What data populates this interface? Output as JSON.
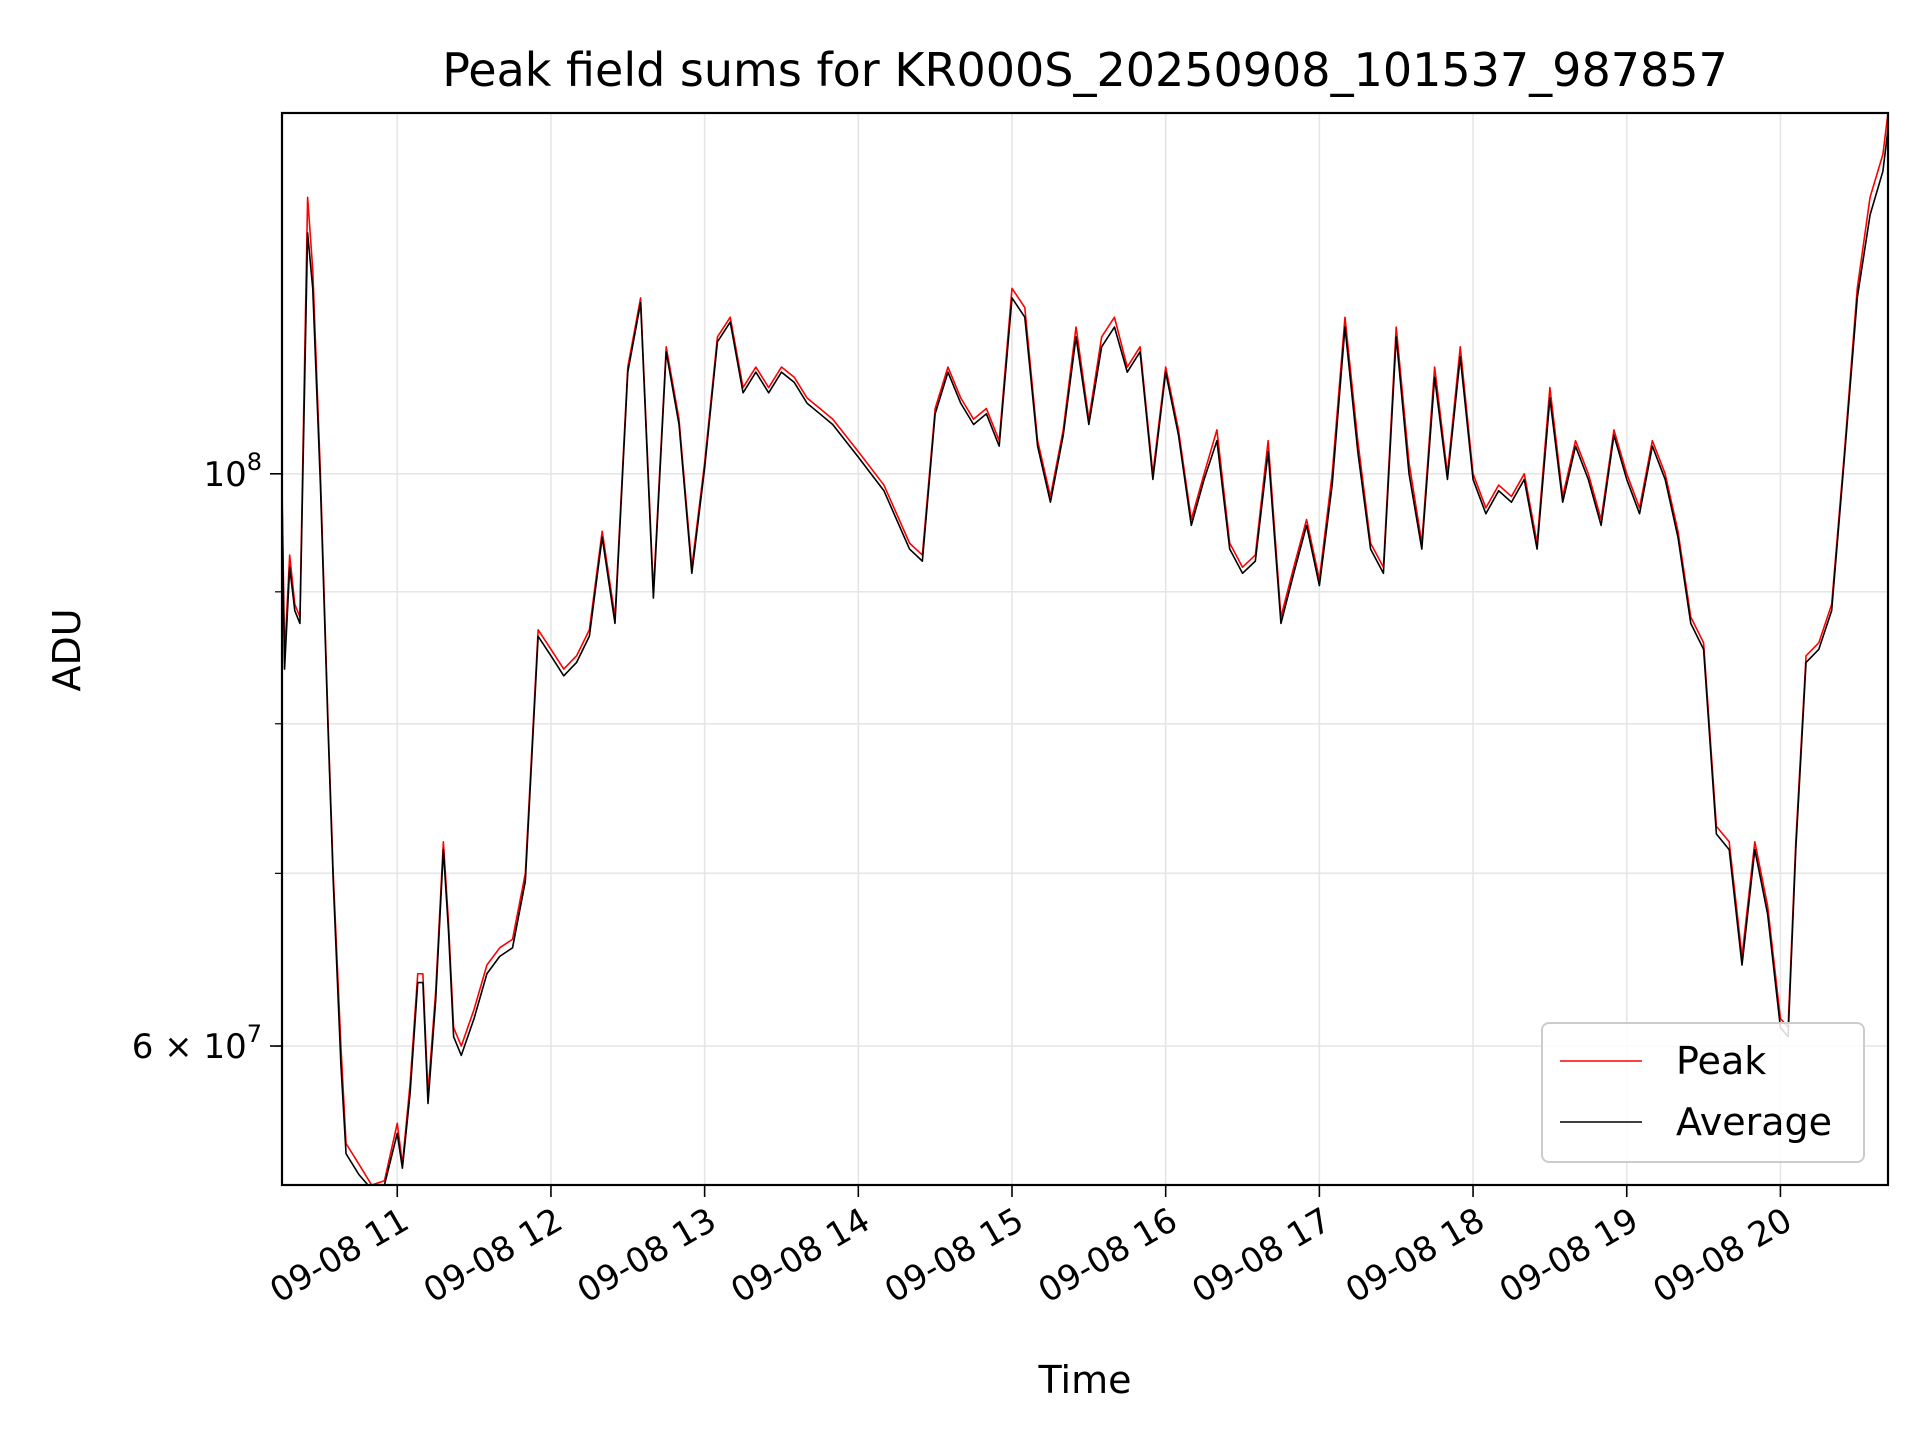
{
  "chart_data": {
    "type": "line",
    "title": "Peak field sums for KR000S_20250908_101537_987857",
    "xlabel": "Time",
    "ylabel": "ADU",
    "yscale": "log",
    "grid": true,
    "legend_position": "lower-right",
    "xlim": [
      "2025-09-08 10:15",
      "2025-09-08 20:42"
    ],
    "ylim": [
      53000000,
      138000000
    ],
    "x_ticks": [
      "09-08 11",
      "09-08 12",
      "09-08 13",
      "09-08 14",
      "09-08 15",
      "09-08 16",
      "09-08 17",
      "09-08 18",
      "09-08 19",
      "09-08 20"
    ],
    "y_ticks": [
      {
        "label_base": "10",
        "label_exp": "8",
        "value": 100000000
      },
      {
        "label_base": "6 × 10",
        "label_exp": "7",
        "value": 60000000
      }
    ],
    "colors": {
      "Peak": "#ff0000",
      "Average": "#000000"
    },
    "x": [
      "10:15",
      "10:16",
      "10:18",
      "10:20",
      "10:22",
      "10:25",
      "10:27",
      "10:30",
      "10:33",
      "10:35",
      "10:38",
      "10:40",
      "10:45",
      "10:50",
      "10:55",
      "11:00",
      "11:02",
      "11:05",
      "11:08",
      "11:10",
      "11:12",
      "11:15",
      "11:18",
      "11:20",
      "11:22",
      "11:25",
      "11:30",
      "11:35",
      "11:40",
      "11:45",
      "11:50",
      "11:55",
      "12:00",
      "12:05",
      "12:10",
      "12:15",
      "12:20",
      "12:25",
      "12:30",
      "12:35",
      "12:40",
      "12:45",
      "12:50",
      "12:55",
      "13:00",
      "13:05",
      "13:10",
      "13:15",
      "13:20",
      "13:25",
      "13:30",
      "13:35",
      "13:40",
      "13:45",
      "13:50",
      "14:00",
      "14:10",
      "14:20",
      "14:25",
      "14:30",
      "14:35",
      "14:40",
      "14:45",
      "14:50",
      "14:55",
      "15:00",
      "15:05",
      "15:10",
      "15:15",
      "15:20",
      "15:25",
      "15:30",
      "15:35",
      "15:40",
      "15:45",
      "15:50",
      "15:55",
      "16:00",
      "16:05",
      "16:10",
      "16:15",
      "16:20",
      "16:25",
      "16:30",
      "16:35",
      "16:40",
      "16:45",
      "16:50",
      "16:55",
      "17:00",
      "17:05",
      "17:10",
      "17:15",
      "17:20",
      "17:25",
      "17:30",
      "17:35",
      "17:40",
      "17:45",
      "17:50",
      "17:55",
      "18:00",
      "18:05",
      "18:10",
      "18:15",
      "18:20",
      "18:25",
      "18:30",
      "18:35",
      "18:40",
      "18:45",
      "18:50",
      "18:55",
      "19:00",
      "19:05",
      "19:10",
      "19:15",
      "19:20",
      "19:25",
      "19:30",
      "19:35",
      "19:40",
      "19:45",
      "19:50",
      "19:55",
      "20:00",
      "20:03",
      "20:06",
      "20:10",
      "20:15",
      "20:20",
      "20:25",
      "20:30",
      "20:35",
      "20:40",
      "20:42"
    ],
    "series": [
      {
        "name": "Peak",
        "values": [
          99000000,
          85000000,
          93000000,
          89000000,
          88000000,
          128000000,
          120000000,
          100000000,
          80000000,
          70000000,
          60000000,
          55000000,
          54000000,
          53000000,
          53200000,
          56000000,
          54000000,
          58000000,
          64000000,
          64000000,
          57500000,
          63000000,
          72000000,
          67000000,
          61000000,
          60000000,
          62000000,
          64500000,
          65500000,
          66000000,
          70000000,
          87000000,
          85500000,
          84000000,
          85000000,
          87000000,
          95000000,
          88000000,
          110000000,
          117000000,
          90000000,
          112000000,
          105000000,
          92000000,
          101000000,
          113000000,
          115000000,
          108000000,
          110000000,
          108000000,
          110000000,
          109000000,
          107000000,
          106000000,
          105000000,
          102000000,
          99000000,
          94000000,
          93000000,
          106000000,
          110000000,
          107000000,
          105000000,
          106000000,
          103000000,
          118000000,
          116000000,
          103000000,
          98000000,
          104000000,
          114000000,
          105000000,
          113000000,
          115000000,
          110000000,
          112000000,
          100000000,
          110000000,
          104000000,
          96000000,
          100000000,
          104000000,
          94000000,
          92000000,
          93000000,
          103000000,
          88000000,
          92000000,
          96000000,
          91000000,
          100000000,
          115000000,
          103000000,
          94000000,
          92000000,
          114000000,
          101000000,
          94000000,
          110000000,
          100000000,
          112000000,
          100000000,
          97000000,
          99000000,
          98000000,
          100000000,
          94000000,
          108000000,
          98000000,
          103000000,
          100000000,
          96000000,
          104000000,
          100000000,
          97000000,
          103000000,
          100000000,
          95000000,
          88000000,
          86000000,
          73000000,
          72000000,
          65000000,
          72000000,
          68000000,
          61500000,
          61000000,
          72000000,
          85000000,
          86000000,
          89000000,
          102000000,
          118000000,
          128000000,
          133000000,
          138000000
        ]
      },
      {
        "name": "Average",
        "values": [
          98000000,
          84000000,
          92000000,
          88500000,
          87500000,
          124000000,
          118000000,
          99000000,
          79500000,
          69500000,
          59000000,
          54500000,
          53500000,
          52800000,
          53000000,
          55500000,
          53800000,
          57500000,
          63500000,
          63500000,
          57000000,
          62500000,
          71500000,
          66500000,
          60500000,
          59500000,
          61500000,
          64000000,
          65000000,
          65500000,
          69500000,
          86500000,
          85000000,
          83500000,
          84500000,
          86500000,
          94500000,
          87500000,
          109500000,
          116500000,
          89500000,
          111500000,
          104500000,
          91500000,
          100500000,
          112500000,
          114500000,
          107500000,
          109500000,
          107500000,
          109500000,
          108500000,
          106500000,
          105500000,
          104500000,
          101500000,
          98500000,
          93500000,
          92500000,
          105500000,
          109500000,
          106500000,
          104500000,
          105500000,
          102500000,
          117000000,
          115000000,
          102500000,
          97500000,
          103500000,
          113000000,
          104500000,
          112000000,
          114000000,
          109500000,
          111500000,
          99500000,
          109500000,
          103500000,
          95500000,
          99500000,
          103000000,
          93500000,
          91500000,
          92500000,
          102000000,
          87500000,
          91500000,
          95500000,
          90500000,
          99000000,
          114000000,
          102000000,
          93500000,
          91500000,
          113000000,
          100000000,
          93500000,
          109000000,
          99500000,
          111000000,
          99500000,
          96500000,
          98500000,
          97500000,
          99500000,
          93500000,
          107000000,
          97500000,
          102500000,
          99500000,
          95500000,
          103500000,
          99500000,
          96500000,
          102500000,
          99500000,
          94500000,
          87500000,
          85500000,
          72500000,
          71500000,
          64500000,
          71500000,
          67500000,
          61000000,
          60500000,
          71500000,
          84500000,
          85500000,
          88500000,
          101500000,
          117000000,
          126000000,
          131000000,
          136000000
        ]
      }
    ]
  }
}
